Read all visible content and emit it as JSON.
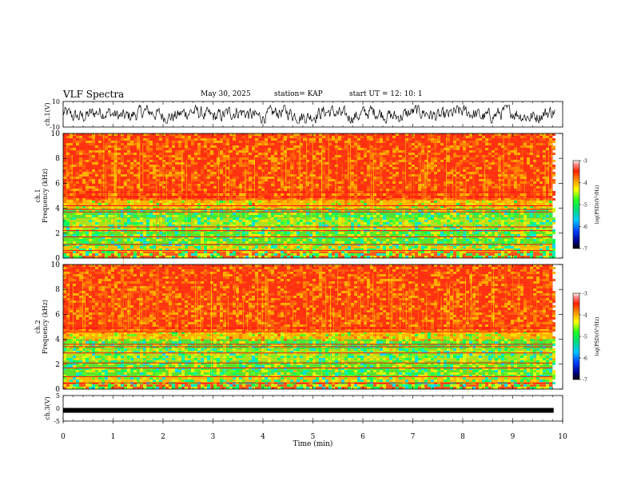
{
  "header": {
    "title": "VLF Spectra",
    "date": "May 30, 2025",
    "station": "station= KAP",
    "start": "start  UT  =   12: 10: 1"
  },
  "chart_data": [
    {
      "type": "line",
      "panel": "ch1-waveform",
      "ylabel": "ch.1(V)",
      "ylim": [
        -10,
        10
      ],
      "yticks": [
        "10",
        "-10"
      ],
      "xlim": [
        0,
        10
      ],
      "note_values": "noisy waveform oscillating roughly between -7 and 7 V"
    },
    {
      "type": "heatmap",
      "panel": "ch1-spectrogram",
      "ylabel": "ch.1\nFrequency (kHz)",
      "ylabel_line1": "ch.1",
      "ylabel_line2": "Frequency  (kHz)",
      "ylim": [
        0,
        10
      ],
      "yticks": [
        "0",
        "2",
        "4",
        "6",
        "8",
        "10"
      ],
      "xlim": [
        0,
        9.8
      ],
      "colorbar": {
        "label": "log(PSD)(V²/Hz)",
        "range": [
          -7,
          -3
        ],
        "ticks": [
          "-3",
          "-4",
          "-5",
          "-6",
          "-7"
        ]
      },
      "horizontal_lines_khz": [
        0.6,
        1.1,
        1.7,
        2.2,
        2.5,
        3.7,
        3.9,
        4.2,
        4.9,
        5.3
      ]
    },
    {
      "type": "heatmap",
      "panel": "ch2-spectrogram",
      "ylabel_line1": "ch.2",
      "ylabel_line2": "Frequency  (kHz)",
      "ylim": [
        0,
        10
      ],
      "yticks": [
        "0",
        "2",
        "4",
        "6",
        "8",
        "10"
      ],
      "xlim": [
        0,
        9.8
      ],
      "colorbar": {
        "label": "log(PSD)(V²/Hz)",
        "range": [
          -7,
          -3
        ],
        "ticks": [
          "-3",
          "-4",
          "-5",
          "-6",
          "-7"
        ]
      },
      "horizontal_lines_khz": [
        0.5,
        1.0,
        1.7,
        2.1,
        2.9,
        3.4,
        3.6,
        4.6,
        4.9
      ]
    },
    {
      "type": "line",
      "panel": "ch3-waveform",
      "ylabel": "ch.3(V)",
      "ylim": [
        -5,
        5
      ],
      "yticks": [
        "5",
        "0",
        "-5"
      ],
      "xlim": [
        0,
        10
      ],
      "level": -0.8,
      "xlabel": "Time  (min)",
      "xticks": [
        "0",
        "1",
        "2",
        "3",
        "4",
        "5",
        "6",
        "7",
        "8",
        "9",
        "10"
      ]
    }
  ]
}
